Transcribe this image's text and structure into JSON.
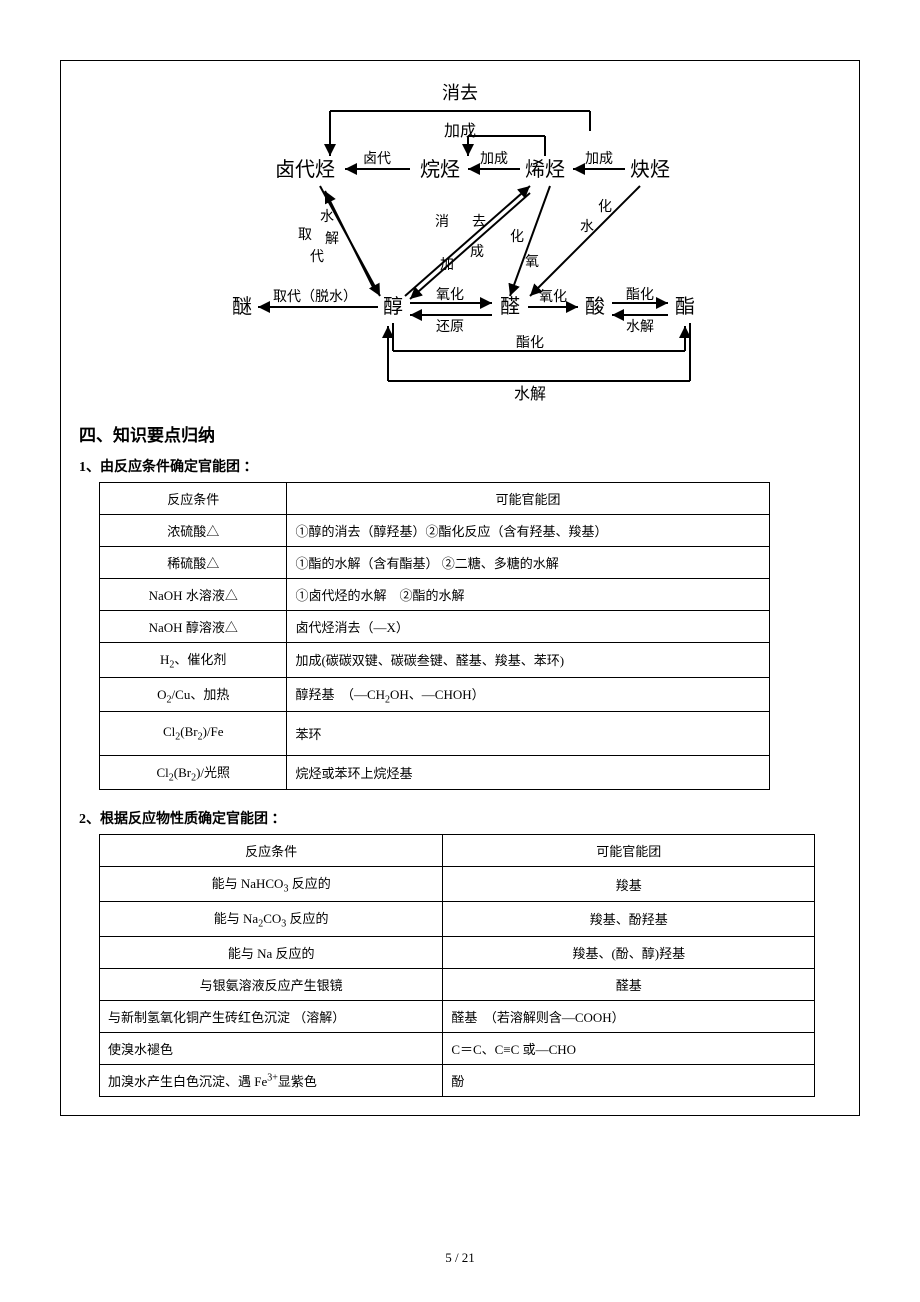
{
  "diagram": {
    "nodes": {
      "elim_top": "消去",
      "add1": "加成",
      "add2": "加成",
      "add3": "加成",
      "halo": "卤代",
      "halohc": "卤代烃",
      "alkane": "烷烃",
      "alkene": "烯烃",
      "alkyne": "炔烃",
      "shui": "水",
      "qu": "取",
      "jie": "解",
      "dai": "代",
      "xiao": "消",
      "qu2": "去",
      "jia": "加",
      "cheng": "成",
      "hua": "化",
      "yang": "氧",
      "shui2": "水",
      "hua2": "化",
      "ether": "醚",
      "subst": "取代（脱水）",
      "alcohol": "醇",
      "oxid": "氧化",
      "reduce": "还原",
      "aldehyde": "醛",
      "oxid2": "氧化",
      "acid": "酸",
      "esterify": "酯化",
      "hydrolyze": "水解",
      "ester": "酯",
      "esterify2": "酯化",
      "hydrolyze2": "水解"
    }
  },
  "section_heading": "四、知识要点归纳",
  "sub1_heading": "1、由反应条件确定官能团 ：",
  "table1": {
    "header_cond": "反应条件",
    "header_group": "可能官能团",
    "rows": [
      {
        "cond": "浓硫酸△",
        "group": "①醇的消去（醇羟基）②酯化反应（含有羟基、羧基）"
      },
      {
        "cond": "稀硫酸△",
        "group": "①酯的水解（含有酯基） ②二糖、多糖的水解"
      },
      {
        "cond": "NaOH 水溶液△",
        "group": "①卤代烃的水解　②酯的水解"
      },
      {
        "cond": "NaOH 醇溶液△",
        "group": "卤代烃消去（—X）"
      },
      {
        "cond_html": "H<sub>2</sub>、催化剂",
        "group": "加成(碳碳双键、碳碳叁键、醛基、羧基、苯环)"
      },
      {
        "cond_html": "O<sub>2</sub>/Cu、加热",
        "group_html": "醇羟基　（—CH<sub>2</sub>OH、—CHOH）"
      },
      {
        "cond_html": "Cl<sub>2</sub>(Br<sub>2</sub>)/Fe",
        "group": "苯环"
      },
      {
        "cond_html": "Cl<sub>2</sub>(Br<sub>2</sub>)/光照",
        "group": "烷烃或苯环上烷烃基"
      }
    ]
  },
  "sub2_heading": "2、根据反应物性质确定官能团 ：",
  "table2": {
    "header_cond": "反应条件",
    "header_group": "可能官能团",
    "rows": [
      {
        "cond_html": "能与 NaHCO<sub>3</sub> 反应的",
        "group": "羧基",
        "center": true
      },
      {
        "cond_html": "能与 Na<sub>2</sub>CO<sub>3</sub> 反应的",
        "group": "羧基、酚羟基",
        "center": true
      },
      {
        "cond": "能与 Na 反应的",
        "group": "羧基、(酚、醇)羟基",
        "center": true
      },
      {
        "cond": "与银氨溶液反应产生银镜",
        "group": "醛基",
        "center": true
      },
      {
        "cond": "与新制氢氧化铜产生砖红色沉淀 （溶解）",
        "group": "醛基　（若溶解则含—COOH）",
        "left": true
      },
      {
        "cond": "使溴水褪色",
        "group": "C＝C、C≡C 或—CHO",
        "left": true
      },
      {
        "cond_html": "加溴水产生白色沉淀、遇 Fe<sup>3+</sup>显紫色",
        "group": "酚",
        "left": true
      }
    ]
  },
  "footer": "5 / 21"
}
